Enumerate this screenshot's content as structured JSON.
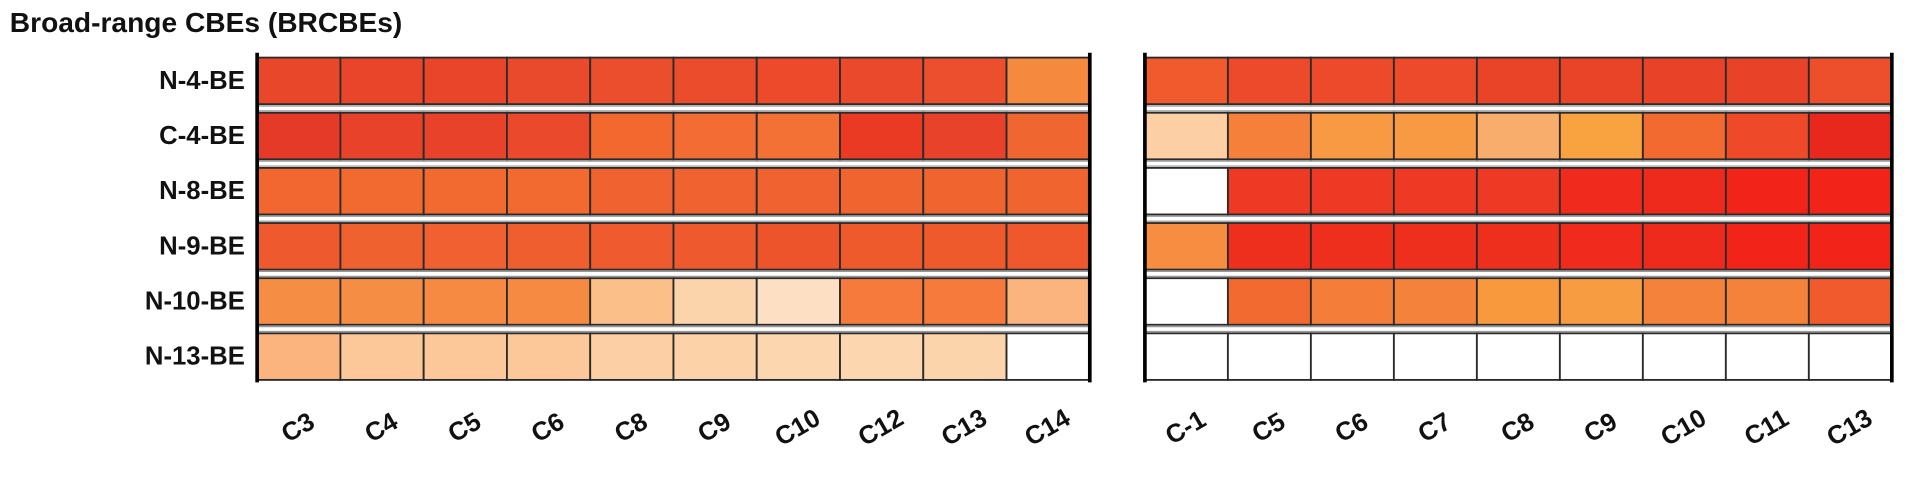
{
  "chart_data": {
    "type": "heatmap",
    "title": "Broad-range CBEs (BRCBEs)",
    "rows": [
      "N-4-BE",
      "C-4-BE",
      "N-8-BE",
      "N-9-BE",
      "N-10-BE",
      "N-13-BE"
    ],
    "panels": [
      {
        "columns": [
          "C3",
          "C4",
          "C5",
          "C6",
          "C8",
          "C9",
          "C10",
          "C12",
          "C13",
          "C14"
        ],
        "colors": [
          [
            "#e8472a",
            "#e8452a",
            "#e8452a",
            "#e84a2b",
            "#ea4e2c",
            "#eb4c2c",
            "#ec4a2b",
            "#ea4a2b",
            "#ec4f2e",
            "#f58a3e"
          ],
          [
            "#e63a28",
            "#e8432a",
            "#e8432a",
            "#ea4a2b",
            "#f2682f",
            "#f26c33",
            "#f37134",
            "#ea3a24",
            "#e8432a",
            "#f06630"
          ],
          [
            "#f2672f",
            "#f26a30",
            "#f26a30",
            "#f26a30",
            "#f0622f",
            "#f0622f",
            "#f0622f",
            "#f0642f",
            "#f0642f",
            "#f06430"
          ],
          [
            "#ee5a2d",
            "#f06130",
            "#f06030",
            "#ef5e2e",
            "#ef5b2e",
            "#ee5a2d",
            "#ee542c",
            "#ef5a2d",
            "#ef5a2d",
            "#ef582d"
          ],
          [
            "#f68d45",
            "#f68d45",
            "#f68a43",
            "#f68a43",
            "#fbc08a",
            "#fcd4ab",
            "#fde0c4",
            "#f57a3c",
            "#f57a3c",
            "#fbb47e"
          ],
          [
            "#fbb47e",
            "#fcc89a",
            "#fcc89a",
            "#fcc89a",
            "#fcd0a4",
            "#fcd2a8",
            "#fcd6ae",
            "#fcd6ae",
            "#fcd4ab",
            "#ffffff"
          ]
        ]
      },
      {
        "columns": [
          "C-1",
          "C5",
          "C6",
          "C7",
          "C8",
          "C9",
          "C10",
          "C11",
          "C13"
        ],
        "colors": [
          [
            "#f05a2d",
            "#ec4a2b",
            "#ec4a2b",
            "#ec4a2b",
            "#ea4428",
            "#ea4428",
            "#e84228",
            "#e84228",
            "#ed4e2c"
          ],
          [
            "#fcd0a4",
            "#f5803a",
            "#f89a44",
            "#f89a44",
            "#f9ad6c",
            "#f9a240",
            "#f26a30",
            "#ee4a2a",
            "#e8281d"
          ],
          [
            "#ffffff",
            "#ee3a24",
            "#ee3a24",
            "#ee3a24",
            "#ee3a24",
            "#f02a1c",
            "#ee2a1c",
            "#f2241a",
            "#f2241a"
          ],
          [
            "#f68d40",
            "#ee2f1e",
            "#ee2f1e",
            "#ee2f1e",
            "#ee2f1e",
            "#f02a1c",
            "#ee2a1c",
            "#f2241a",
            "#f2241a"
          ],
          [
            "#ffffff",
            "#f26a30",
            "#f47d3a",
            "#f4823a",
            "#f8993e",
            "#f89c42",
            "#f4823a",
            "#f4823a",
            "#f05a2d"
          ],
          [
            "#ffffff",
            "#ffffff",
            "#ffffff",
            "#ffffff",
            "#ffffff",
            "#ffffff",
            "#ffffff",
            "#ffffff",
            "#ffffff"
          ]
        ]
      }
    ]
  }
}
